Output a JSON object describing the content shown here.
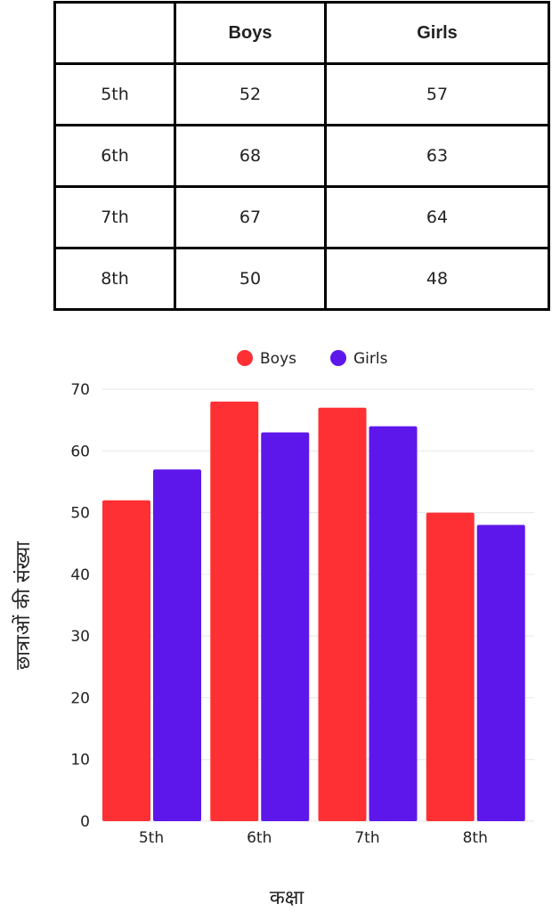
{
  "table": {
    "headers": [
      "",
      "Boys",
      "Girls"
    ],
    "rows": [
      [
        "5th",
        "52",
        "57"
      ],
      [
        "6th",
        "68",
        "63"
      ],
      [
        "7th",
        "67",
        "64"
      ],
      [
        "8th",
        "50",
        "48"
      ]
    ]
  },
  "chart_data": {
    "type": "bar",
    "categories": [
      "5th",
      "6th",
      "7th",
      "8th"
    ],
    "series": [
      {
        "name": "Boys",
        "values": [
          52,
          68,
          67,
          50
        ],
        "color": "#ff3034"
      },
      {
        "name": "Girls",
        "values": [
          57,
          63,
          64,
          48
        ],
        "color": "#5e17eb"
      }
    ],
    "xlabel": "कक्षा",
    "ylabel": "छात्राओं की संख्या",
    "ylim": [
      0,
      70
    ],
    "yticks": [
      0,
      10,
      20,
      30,
      40,
      50,
      60,
      70
    ],
    "grid": true,
    "legend": "top-center"
  }
}
